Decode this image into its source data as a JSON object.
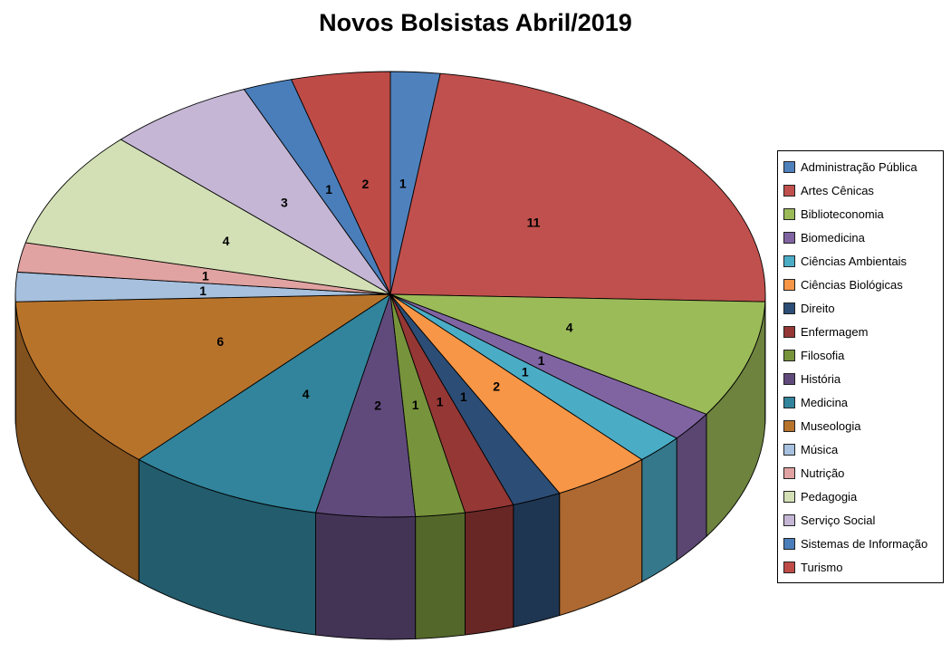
{
  "chart_data": {
    "type": "pie",
    "title": "Novos Bolsistas Abril/2019",
    "effect": "3d",
    "start_angle_deg": 0,
    "direction": "clockwise",
    "total": 47,
    "data_labels": "values-inside",
    "legend_position": "right",
    "slices": [
      {
        "label": "Administração Pública",
        "value": 1,
        "color": "#4F81BD"
      },
      {
        "label": "Artes Cênicas",
        "value": 11,
        "color": "#C0504D"
      },
      {
        "label": "Biblioteconomia",
        "value": 4,
        "color": "#9BBB59"
      },
      {
        "label": "Biomedicina",
        "value": 1,
        "color": "#8064A2"
      },
      {
        "label": "Ciências Ambientais",
        "value": 1,
        "color": "#4BACC6"
      },
      {
        "label": "Ciências Biológicas",
        "value": 2,
        "color": "#F79646"
      },
      {
        "label": "Direito",
        "value": 1,
        "color": "#2C4D75"
      },
      {
        "label": "Enfermagem",
        "value": 1,
        "color": "#953735"
      },
      {
        "label": "Filosofia",
        "value": 1,
        "color": "#77933C"
      },
      {
        "label": "História",
        "value": 2,
        "color": "#604A7B"
      },
      {
        "label": "Medicina",
        "value": 4,
        "color": "#31849B"
      },
      {
        "label": "Museologia",
        "value": 6,
        "color": "#B8732B"
      },
      {
        "label": "Música",
        "value": 1,
        "color": "#A6C0DE"
      },
      {
        "label": "Nutrição",
        "value": 1,
        "color": "#E0A3A1"
      },
      {
        "label": "Pedagogia",
        "value": 4,
        "color": "#D3E0B5"
      },
      {
        "label": "Serviço Social",
        "value": 3,
        "color": "#C4B6D4"
      },
      {
        "label": "Sistemas de Informação",
        "value": 1,
        "color": "#4A7EBB"
      },
      {
        "label": "Turismo",
        "value": 2,
        "color": "#BF4B47"
      }
    ]
  }
}
